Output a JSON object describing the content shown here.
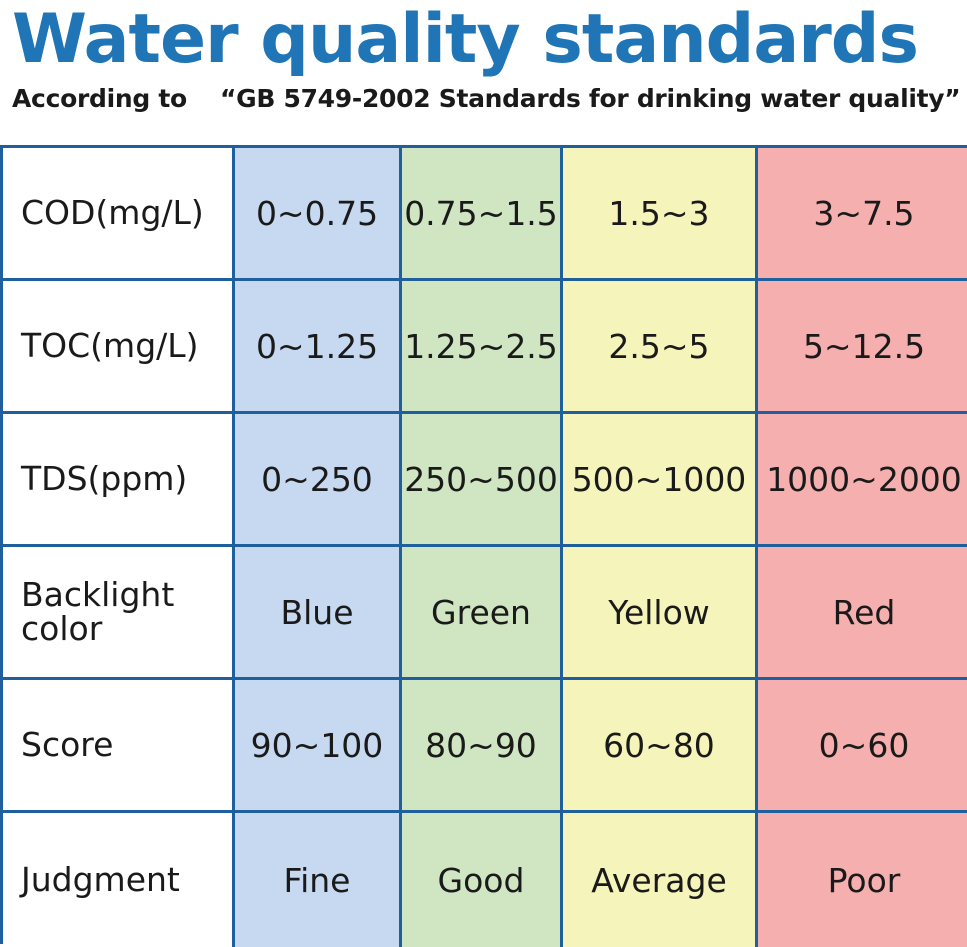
{
  "header": {
    "title": "Water quality standards",
    "subtitle": "According to 　“GB 5749-2002 Standards for drinking water quality”"
  },
  "colors": {
    "title": "#1f75b5",
    "border": "#1f5f9e",
    "blue": "#c6d9f0",
    "green": "#d0e6c3",
    "yellow": "#f5f4bb",
    "red": "#f6afaf"
  },
  "table": {
    "rows": [
      {
        "label": "COD(mg/L)",
        "values": [
          "0~0.75",
          "0.75~1.5",
          "1.5~3",
          "3~7.5"
        ]
      },
      {
        "label": "TOC(mg/L)",
        "values": [
          "0~1.25",
          "1.25~2.5",
          "2.5~5",
          "5~12.5"
        ]
      },
      {
        "label": "TDS(ppm)",
        "values": [
          "0~250",
          "250~500",
          "500~1000",
          "1000~2000"
        ]
      },
      {
        "label": "Backlight color",
        "values": [
          "Blue",
          "Green",
          "Yellow",
          "Red"
        ]
      },
      {
        "label": "Score",
        "values": [
          "90~100",
          "80~90",
          "60~80",
          "0~60"
        ]
      },
      {
        "label": "Judgment",
        "values": [
          "Fine",
          "Good",
          "Average",
          "Poor"
        ]
      }
    ]
  }
}
